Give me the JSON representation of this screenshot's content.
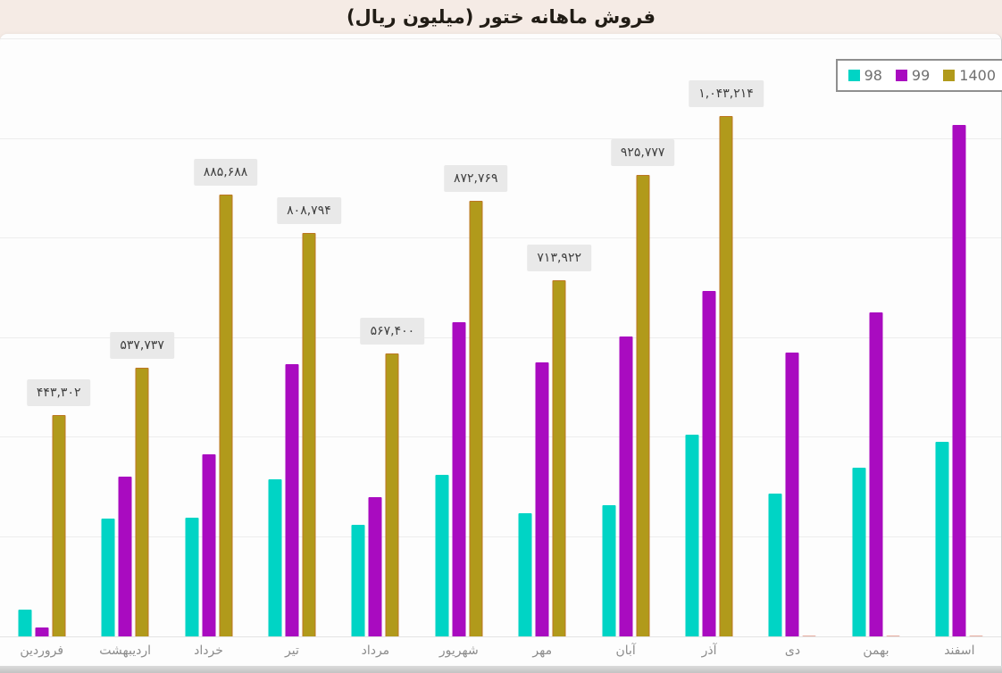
{
  "title": "فروش ماهانه ختور (میلیون ریال)",
  "legend": {
    "position": "top-right",
    "items": [
      {
        "label": "98",
        "color": "#00d4c5"
      },
      {
        "label": "99",
        "color": "#a90bc0"
      },
      {
        "label": "1400",
        "color": "#b19a1b"
      }
    ]
  },
  "chart_data": {
    "type": "bar",
    "title": "فروش ماهانه ختور (میلیون ریال)",
    "categories": [
      "فروردین",
      "اردیبهشت",
      "خرداد",
      "تیر",
      "مرداد",
      "شهریور",
      "مهر",
      "آبان",
      "آذر",
      "دی",
      "بهمن",
      "اسفند"
    ],
    "series": [
      {
        "name": "98",
        "color": "#00d4c5",
        "values": [
          54000,
          236000,
          238000,
          315000,
          225000,
          324000,
          247000,
          263000,
          405000,
          287000,
          339000,
          391000
        ],
        "values_estimated": true
      },
      {
        "name": "99",
        "color": "#a90bc0",
        "values": [
          18000,
          321000,
          366000,
          548000,
          279000,
          631000,
          551000,
          602000,
          694000,
          571000,
          652000,
          1027000
        ],
        "values_estimated": true
      },
      {
        "name": "1400",
        "color": "#b19a1b",
        "values": [
          443302,
          537737,
          885688,
          808794,
          567400,
          872769,
          713922,
          925777,
          1043214,
          null,
          null,
          null
        ],
        "data_labels": [
          "۴۴۳,۳۰۲",
          "۵۳۷,۷۳۷",
          "۸۸۵,۶۸۸",
          "۸۰۸,۷۹۴",
          "۵۶۷,۴۰۰",
          "۸۷۲,۷۶۹",
          "۷۱۳,۹۲۲",
          "۹۲۵,۷۷۷",
          "۱,۰۴۳,۲۱۴",
          null,
          null,
          null
        ]
      }
    ],
    "ylim": [
      0,
      1200000
    ],
    "gridline_step": 200000,
    "grid": true,
    "y_axis_labels_visible": false,
    "legend_position": "top-right",
    "value_labels_on_series": "1400",
    "label_box_color": "#e9e9e9"
  }
}
